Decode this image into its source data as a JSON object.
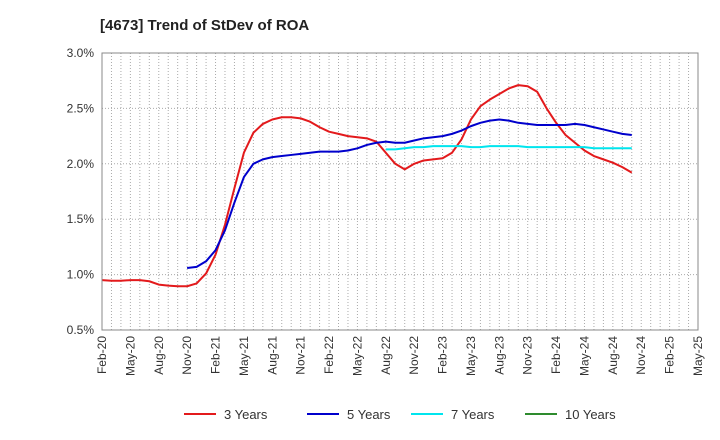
{
  "chart_data": {
    "type": "line",
    "title": "[4673]  Trend of StDev of ROA",
    "xlabel": "",
    "ylabel": "",
    "ylim": [
      0.5,
      3.0
    ],
    "y_ticks": [
      "0.5%",
      "1.0%",
      "1.5%",
      "2.0%",
      "2.5%",
      "3.0%"
    ],
    "y_tick_values": [
      0.5,
      1.0,
      1.5,
      2.0,
      2.5,
      3.0
    ],
    "x_ticks": [
      "Feb-20",
      "May-20",
      "Aug-20",
      "Nov-20",
      "Feb-21",
      "May-21",
      "Aug-21",
      "Nov-21",
      "Feb-22",
      "May-22",
      "Aug-22",
      "Nov-22",
      "Feb-23",
      "May-23",
      "Aug-23",
      "Nov-23",
      "Feb-24",
      "May-24",
      "Aug-24",
      "Nov-24",
      "Feb-25",
      "May-25"
    ],
    "grid": true,
    "legend_position": "bottom",
    "series": [
      {
        "name": "3 Years",
        "color": "#e31a1c",
        "values": [
          0.95,
          0.945,
          0.945,
          0.95,
          0.95,
          0.94,
          0.91,
          0.9,
          0.895,
          0.895,
          0.92,
          1.01,
          1.18,
          1.45,
          1.78,
          2.1,
          2.28,
          2.36,
          2.4,
          2.42,
          2.42,
          2.41,
          2.38,
          2.33,
          2.29,
          2.27,
          2.25,
          2.24,
          2.23,
          2.2,
          2.1,
          2.0,
          1.95,
          2.0,
          2.03,
          2.04,
          2.05,
          2.1,
          2.22,
          2.4,
          2.52,
          2.58,
          2.63,
          2.68,
          2.71,
          2.7,
          2.65,
          2.5,
          2.37,
          2.26,
          2.19,
          2.12,
          2.07,
          2.04,
          2.01,
          1.97,
          1.92
        ]
      },
      {
        "name": "5 Years",
        "color": "#0000cc",
        "values": [
          null,
          null,
          null,
          null,
          null,
          null,
          null,
          null,
          null,
          1.06,
          1.07,
          1.12,
          1.22,
          1.4,
          1.65,
          1.88,
          2.0,
          2.04,
          2.06,
          2.07,
          2.08,
          2.09,
          2.1,
          2.11,
          2.11,
          2.11,
          2.12,
          2.14,
          2.17,
          2.19,
          2.2,
          2.19,
          2.19,
          2.21,
          2.23,
          2.24,
          2.25,
          2.27,
          2.3,
          2.34,
          2.37,
          2.39,
          2.4,
          2.39,
          2.37,
          2.36,
          2.35,
          2.35,
          2.35,
          2.35,
          2.36,
          2.35,
          2.33,
          2.31,
          2.29,
          2.27,
          2.26
        ]
      },
      {
        "name": "7 Years",
        "color": "#00e5ee",
        "values": [
          null,
          null,
          null,
          null,
          null,
          null,
          null,
          null,
          null,
          null,
          null,
          null,
          null,
          null,
          null,
          null,
          null,
          null,
          null,
          null,
          null,
          null,
          null,
          null,
          null,
          null,
          null,
          null,
          null,
          null,
          2.13,
          2.13,
          2.14,
          2.15,
          2.15,
          2.16,
          2.16,
          2.16,
          2.16,
          2.15,
          2.15,
          2.16,
          2.16,
          2.16,
          2.16,
          2.15,
          2.15,
          2.15,
          2.15,
          2.15,
          2.15,
          2.15,
          2.14,
          2.14,
          2.14,
          2.14,
          2.14
        ]
      },
      {
        "name": "10 Years",
        "color": "#2e8b2e",
        "values": []
      }
    ]
  }
}
